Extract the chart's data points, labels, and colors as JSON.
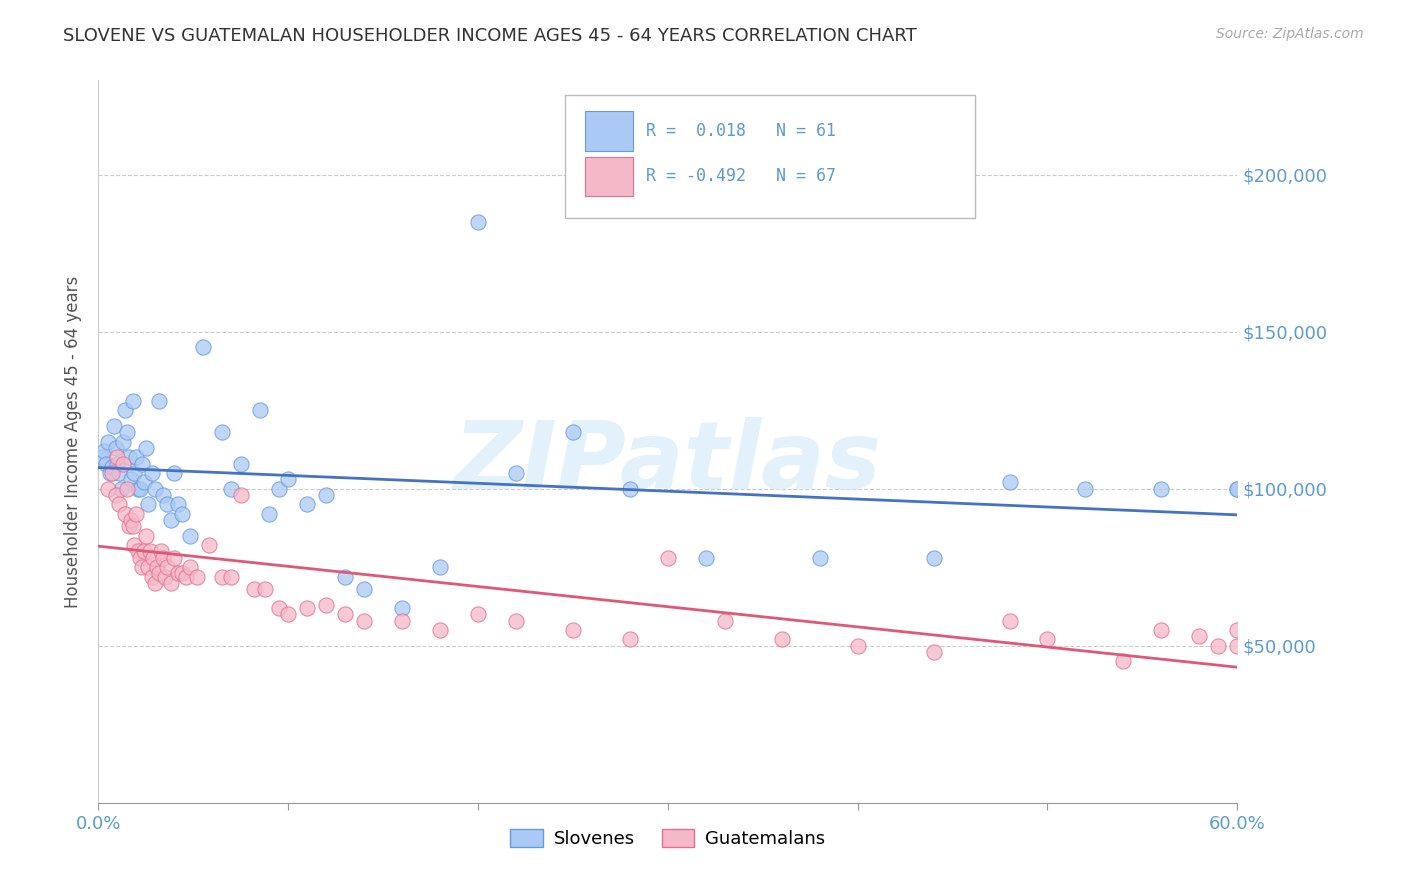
{
  "title": "SLOVENE VS GUATEMALAN HOUSEHOLDER INCOME AGES 45 - 64 YEARS CORRELATION CHART",
  "source": "Source: ZipAtlas.com",
  "ylabel": "Householder Income Ages 45 - 64 years",
  "legend_R": [
    "0.018",
    "-0.492"
  ],
  "legend_N": [
    "61",
    "67"
  ],
  "xmin": 0.0,
  "xmax": 0.6,
  "ymin": 0,
  "ymax": 230000,
  "yticks": [
    0,
    50000,
    100000,
    150000,
    200000
  ],
  "ytick_labels": [
    "",
    "$50,000",
    "$100,000",
    "$150,000",
    "$200,000"
  ],
  "xtick_show": [
    0.0,
    0.6
  ],
  "xtick_labels_show": [
    "0.0%",
    "60.0%"
  ],
  "xtick_minor": [
    0.1,
    0.2,
    0.3,
    0.4,
    0.5
  ],
  "color_slovene": "#aac9f5",
  "color_guatemalan": "#f5b8c8",
  "color_slovene_edge": "#6699dd",
  "color_guatemalan_edge": "#e07090",
  "color_line_slovene": "#4472c4",
  "color_line_guatemalan": "#e05878",
  "color_ytick_labels": "#5b9bd5",
  "color_xtick_labels": "#5b9bd5",
  "background_color": "#ffffff",
  "watermark": "ZIPatlas",
  "slovene_x": [
    0.002,
    0.003,
    0.004,
    0.005,
    0.006,
    0.007,
    0.008,
    0.009,
    0.01,
    0.011,
    0.012,
    0.013,
    0.014,
    0.015,
    0.016,
    0.017,
    0.018,
    0.019,
    0.02,
    0.021,
    0.022,
    0.023,
    0.024,
    0.025,
    0.026,
    0.028,
    0.03,
    0.032,
    0.034,
    0.036,
    0.038,
    0.04,
    0.042,
    0.044,
    0.048,
    0.055,
    0.065,
    0.07,
    0.075,
    0.085,
    0.09,
    0.095,
    0.1,
    0.11,
    0.12,
    0.13,
    0.14,
    0.16,
    0.18,
    0.2,
    0.22,
    0.25,
    0.28,
    0.32,
    0.38,
    0.44,
    0.48,
    0.52,
    0.56,
    0.6,
    0.6
  ],
  "slovene_y": [
    110000,
    112000,
    108000,
    115000,
    105000,
    107000,
    120000,
    113000,
    108000,
    105000,
    100000,
    115000,
    125000,
    118000,
    110000,
    103000,
    128000,
    105000,
    110000,
    100000,
    100000,
    108000,
    102000,
    113000,
    95000,
    105000,
    100000,
    128000,
    98000,
    95000,
    90000,
    105000,
    95000,
    92000,
    85000,
    145000,
    118000,
    100000,
    108000,
    125000,
    92000,
    100000,
    103000,
    95000,
    98000,
    72000,
    68000,
    62000,
    75000,
    185000,
    105000,
    118000,
    100000,
    78000,
    78000,
    78000,
    102000,
    100000,
    100000,
    100000,
    100000
  ],
  "guatemalan_x": [
    0.005,
    0.007,
    0.009,
    0.01,
    0.011,
    0.013,
    0.014,
    0.015,
    0.016,
    0.017,
    0.018,
    0.019,
    0.02,
    0.021,
    0.022,
    0.023,
    0.024,
    0.025,
    0.026,
    0.027,
    0.028,
    0.029,
    0.03,
    0.031,
    0.032,
    0.033,
    0.034,
    0.035,
    0.036,
    0.038,
    0.04,
    0.042,
    0.044,
    0.046,
    0.048,
    0.052,
    0.058,
    0.065,
    0.07,
    0.075,
    0.082,
    0.088,
    0.095,
    0.1,
    0.11,
    0.12,
    0.13,
    0.14,
    0.16,
    0.18,
    0.2,
    0.22,
    0.25,
    0.28,
    0.3,
    0.33,
    0.36,
    0.4,
    0.44,
    0.48,
    0.5,
    0.54,
    0.56,
    0.58,
    0.59,
    0.6,
    0.6
  ],
  "guatemalan_y": [
    100000,
    105000,
    98000,
    110000,
    95000,
    108000,
    92000,
    100000,
    88000,
    90000,
    88000,
    82000,
    92000,
    80000,
    78000,
    75000,
    80000,
    85000,
    75000,
    80000,
    72000,
    78000,
    70000,
    75000,
    73000,
    80000,
    78000,
    72000,
    75000,
    70000,
    78000,
    73000,
    73000,
    72000,
    75000,
    72000,
    82000,
    72000,
    72000,
    98000,
    68000,
    68000,
    62000,
    60000,
    62000,
    63000,
    60000,
    58000,
    58000,
    55000,
    60000,
    58000,
    55000,
    52000,
    78000,
    58000,
    52000,
    50000,
    48000,
    58000,
    52000,
    45000,
    55000,
    53000,
    50000,
    50000,
    55000
  ]
}
